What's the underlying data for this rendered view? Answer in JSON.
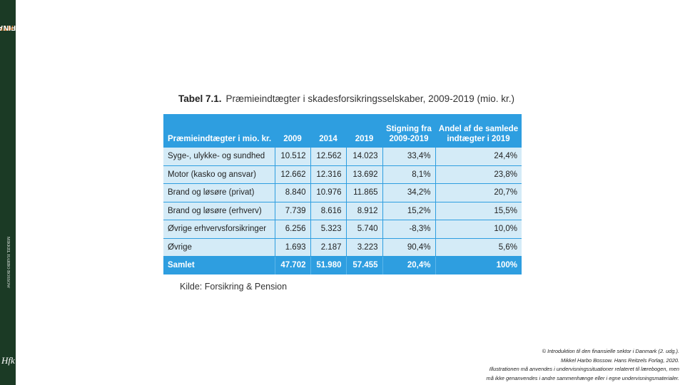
{
  "spine": {
    "title_part1": "INTRODUKTION TIL DEN",
    "title_part2": "FINANSIELLE SEKTOR I DANMARK",
    "author": "MIKKEL HARBO BOSSOW",
    "logo": "Hfk",
    "colors": {
      "background": "#1b3a25",
      "accent": "#e8873a"
    }
  },
  "table": {
    "label": "Tabel 7.1.",
    "title": "Præmieindtægter i skadesforsikringsselskaber, 2009-2019 (mio. kr.)",
    "headers": [
      "Præmieindtægter i mio. kr.",
      "2009",
      "2014",
      "2019",
      "Stigning fra 2009-2019",
      "Andel af de samlede indtægter i 2019"
    ],
    "rows": [
      [
        "Syge-, ulykke- og sundhed",
        "10.512",
        "12.562",
        "14.023",
        "33,4%",
        "24,4%"
      ],
      [
        "Motor (kasko og ansvar)",
        "12.662",
        "12.316",
        "13.692",
        "8,1%",
        "23,8%"
      ],
      [
        "Brand og løsøre (privat)",
        "8.840",
        "10.976",
        "11.865",
        "34,2%",
        "20,7%"
      ],
      [
        "Brand og løsøre (erhverv)",
        "7.739",
        "8.616",
        "8.912",
        "15,2%",
        "15,5%"
      ],
      [
        "Øvrige erhvervsforsikringer",
        "6.256",
        "5.323",
        "5.740",
        "-8,3%",
        "10,0%"
      ],
      [
        "Øvrige",
        "1.693",
        "2.187",
        "3.223",
        "90,4%",
        "5,6%"
      ]
    ],
    "total": [
      "Samlet",
      "47.702",
      "51.980",
      "57.455",
      "20,4%",
      "100%"
    ],
    "source": "Kilde: Forsikring & Pension",
    "colors": {
      "header": "#2e9ee0",
      "cell": "#d4ebf7"
    }
  },
  "copyright": {
    "line1": "© Introduktion til den finansielle sektor i Danmark (2. udg.).",
    "line2": "Mikkel Harbo Bossow. Hans Reitzels Forlag, 2020.",
    "line3": "Illustrationen må anvendes i undervisningssituationer relateret til lærebogen, men",
    "line4": "må ikke genanvendes i andre sammenhænge eller i egne undervisningsmaterialer."
  }
}
